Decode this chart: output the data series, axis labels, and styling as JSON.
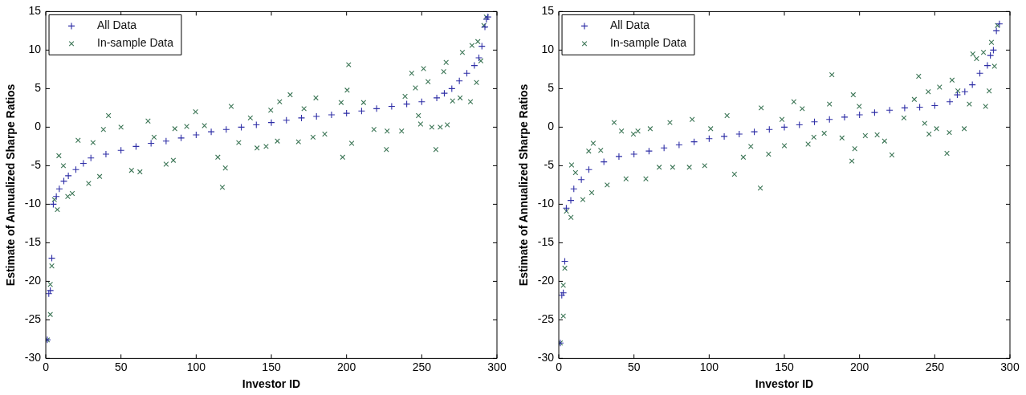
{
  "chart_data": [
    {
      "type": "scatter",
      "xlabel": "Investor ID",
      "ylabel": "Estimate of Annualized Sharpe Ratios",
      "xlim": [
        0,
        300
      ],
      "ylim": [
        -30,
        15
      ],
      "xticks": [
        0,
        50,
        100,
        150,
        200,
        250,
        300
      ],
      "yticks": [
        -30,
        -25,
        -20,
        -15,
        -10,
        -5,
        0,
        5,
        10,
        15
      ],
      "legend": "top left",
      "series": [
        {
          "name": "All Data",
          "color": "#2e2ea6",
          "marker": "plus",
          "x": [
            1,
            2,
            3,
            4,
            5,
            7,
            9,
            12,
            15,
            20,
            25,
            30,
            40,
            50,
            60,
            70,
            80,
            90,
            100,
            110,
            120,
            130,
            140,
            150,
            160,
            170,
            180,
            190,
            200,
            210,
            220,
            230,
            240,
            250,
            260,
            265,
            270,
            275,
            280,
            285,
            288,
            290,
            292,
            293,
            294
          ],
          "values": [
            -27.6,
            -21.6,
            -21.2,
            -17,
            -10,
            -9,
            -8,
            -7,
            -6.3,
            -5.5,
            -4.7,
            -4,
            -3.5,
            -3,
            -2.5,
            -2.1,
            -1.8,
            -1.4,
            -1,
            -0.6,
            -0.3,
            0,
            0.3,
            0.6,
            0.9,
            1.2,
            1.4,
            1.6,
            1.8,
            2.1,
            2.4,
            2.7,
            3,
            3.3,
            3.8,
            4.4,
            5,
            6,
            7,
            8,
            9,
            10.5,
            13,
            14,
            14.3
          ]
        },
        {
          "name": "In-sample Data",
          "color": "#3b7555",
          "marker": "cross",
          "x": [
            1,
            3,
            3,
            4,
            5.7,
            7.7,
            8.7,
            11.7,
            14.6,
            17.6,
            21.5,
            28.5,
            31.4,
            35.8,
            38.3,
            41.7,
            50,
            57,
            62.6,
            68,
            72,
            80,
            84.8,
            85.8,
            93.7,
            99.6,
            105.5,
            114.4,
            117.4,
            119.4,
            123.3,
            128.3,
            136,
            140.5,
            146.5,
            149.6,
            154,
            155.5,
            162.5,
            168,
            171.7,
            177.7,
            179.6,
            185.5,
            196.4,
            197.4,
            200.4,
            201.4,
            203.4,
            211.3,
            218.2,
            226.5,
            227,
            236.6,
            238.9,
            243.3,
            245.8,
            247.8,
            249.2,
            251.2,
            254.2,
            256.7,
            259.4,
            262.3,
            264.6,
            266.2,
            267,
            270.5,
            275.5,
            277,
            282.4,
            283.4,
            286.4,
            287.3,
            289.3,
            291.3,
            292.9
          ],
          "values": [
            -27.6,
            -24.3,
            -20.4,
            -18,
            -9.4,
            -10.7,
            -3.7,
            -5,
            -9,
            -8.6,
            -1.7,
            -7.3,
            -2,
            -6.4,
            -0.3,
            1.5,
            0,
            -5.6,
            -5.8,
            0.8,
            -1.3,
            -4.8,
            -4.3,
            -0.2,
            0.1,
            2,
            0.2,
            -3.9,
            -7.8,
            -5.3,
            2.7,
            -2,
            1.2,
            -2.7,
            -2.5,
            2.2,
            -1.8,
            3.3,
            4.2,
            -1.9,
            2.4,
            -1.3,
            3.8,
            -0.9,
            3.2,
            -3.9,
            4.8,
            8.1,
            -2.1,
            3.2,
            -0.3,
            -2.9,
            -0.5,
            -0.5,
            4,
            7,
            5.1,
            1.5,
            0.4,
            7.6,
            5.9,
            0,
            -2.9,
            0,
            7.2,
            8.4,
            0.3,
            3.4,
            3.8,
            9.7,
            3.3,
            10.6,
            5.8,
            11.1,
            8.6,
            13.2,
            14.3
          ]
        }
      ]
    },
    {
      "type": "scatter",
      "xlabel": "Investor ID",
      "ylabel": "Estimate of Annualized Sharpe Ratios",
      "xlim": [
        0,
        300
      ],
      "ylim": [
        -30,
        15
      ],
      "xticks": [
        0,
        50,
        100,
        150,
        200,
        250,
        300
      ],
      "yticks": [
        -30,
        -25,
        -20,
        -15,
        -10,
        -5,
        0,
        5,
        10,
        15
      ],
      "legend": "top left",
      "series": [
        {
          "name": "All Data",
          "color": "#2e2ea6",
          "marker": "plus",
          "x": [
            1,
            2,
            3,
            4,
            5,
            8,
            10,
            15,
            20,
            30,
            40,
            50,
            60,
            70,
            80,
            90,
            100,
            110,
            120,
            130,
            140,
            150,
            160,
            170,
            180,
            190,
            200,
            210,
            220,
            230,
            240,
            250,
            260,
            265,
            270,
            275,
            280,
            285,
            287,
            289,
            291,
            293
          ],
          "values": [
            -28,
            -21.8,
            -21.5,
            -17.4,
            -10.5,
            -9.5,
            -8,
            -6.8,
            -5.5,
            -4.5,
            -3.8,
            -3.5,
            -3.1,
            -2.7,
            -2.3,
            -1.9,
            -1.5,
            -1.2,
            -0.9,
            -0.6,
            -0.3,
            0,
            0.3,
            0.7,
            1,
            1.3,
            1.6,
            1.9,
            2.2,
            2.5,
            2.6,
            2.8,
            3.3,
            4.2,
            4.6,
            5.5,
            7,
            8,
            9.3,
            10,
            12.5,
            13.4
          ]
        },
        {
          "name": "In-sample Data",
          "color": "#3b7555",
          "marker": "cross",
          "x": [
            1,
            3,
            3,
            4,
            5.1,
            8.1,
            8.5,
            11.1,
            16,
            19.9,
            21.9,
            22.9,
            27.9,
            32.2,
            36.8,
            41.7,
            44.7,
            49.6,
            52.6,
            57.9,
            60.8,
            66.8,
            73.9,
            75.7,
            86.8,
            88.7,
            97,
            101,
            111.9,
            116.8,
            122.7,
            127.7,
            134,
            134.6,
            139.5,
            148.4,
            150,
            156.3,
            161.9,
            165.8,
            169.6,
            176.5,
            180,
            181.6,
            188.3,
            194.9,
            195.8,
            196.8,
            199.8,
            203.8,
            211.7,
            216.6,
            221.5,
            229.5,
            236.4,
            239.3,
            243.3,
            245.7,
            246.2,
            251.2,
            253.2,
            258.1,
            259.7,
            261.5,
            265.4,
            269.6,
            273,
            275.3,
            277.8,
            282.4,
            283.8,
            286.2,
            287.7,
            289.7,
            291.7
          ],
          "values": [
            -28,
            -24.5,
            -20.5,
            -18.3,
            -10.9,
            -11.7,
            -4.9,
            -5.9,
            -9.4,
            -3.1,
            -8.5,
            -2.1,
            -3,
            -7.5,
            0.6,
            -0.5,
            -6.7,
            -0.9,
            -0.5,
            -6.7,
            -0.2,
            -5.2,
            0.6,
            -5.2,
            -5.2,
            1,
            -5,
            -0.2,
            1.5,
            -6.1,
            -3.9,
            -2.5,
            -7.9,
            2.5,
            -3.5,
            1,
            -2.4,
            3.3,
            2.4,
            -2.2,
            -1.3,
            -0.8,
            3,
            6.8,
            -1.4,
            -4.4,
            4.2,
            -2.8,
            2.7,
            -1.1,
            -1,
            -1.8,
            -3.6,
            1.2,
            3.6,
            6.6,
            0.5,
            4.6,
            -0.9,
            -0.2,
            5.2,
            -3.4,
            -0.7,
            6.1,
            4.7,
            -0.2,
            3,
            9.5,
            8.9,
            9.7,
            2.7,
            4.7,
            11,
            7.9,
            13.2
          ]
        }
      ]
    }
  ]
}
